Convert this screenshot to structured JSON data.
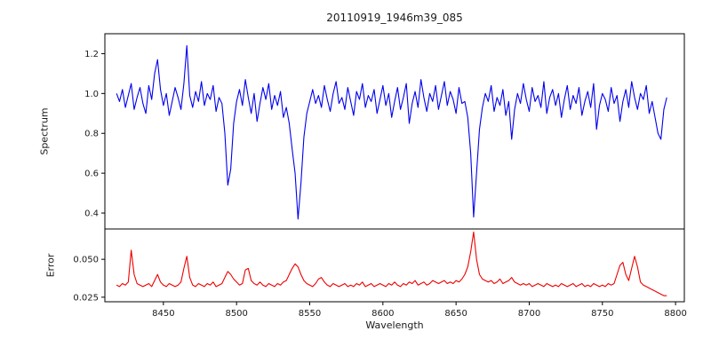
{
  "chart_data": {
    "type": "line",
    "title": "20110919_1946m39_085",
    "xlabel": "Wavelength",
    "x_start": 8418,
    "x_step": 2,
    "xlim": [
      8410,
      8806
    ],
    "x_ticks": [
      8450,
      8500,
      8550,
      8600,
      8650,
      8700,
      8750,
      8800
    ],
    "x_tick_labels": [
      "8450",
      "8500",
      "8550",
      "8600",
      "8650",
      "8700",
      "8750",
      "8800"
    ],
    "frame_color": "#000000",
    "panels": [
      {
        "name": "spectrum",
        "ylabel": "Spectrum",
        "color": "#0000ee",
        "ylim": [
          0.32,
          1.3
        ],
        "y_ticks": [
          0.4,
          0.6,
          0.8,
          1.0,
          1.2
        ],
        "y_tick_labels": [
          "0.4",
          "0.6",
          "0.8",
          "1.0",
          "1.2"
        ],
        "values": [
          1.0,
          0.96,
          1.02,
          0.93,
          0.99,
          1.05,
          0.92,
          0.98,
          1.03,
          0.95,
          0.9,
          1.04,
          0.97,
          1.1,
          1.17,
          1.02,
          0.94,
          1.0,
          0.89,
          0.96,
          1.03,
          0.98,
          0.92,
          1.05,
          1.24,
          0.99,
          0.93,
          1.01,
          0.96,
          1.06,
          0.94,
          1.0,
          0.97,
          1.04,
          0.91,
          0.98,
          0.95,
          0.8,
          0.54,
          0.62,
          0.85,
          0.96,
          1.02,
          0.94,
          1.07,
          0.98,
          0.9,
          1.0,
          0.86,
          0.95,
          1.03,
          0.97,
          1.05,
          0.92,
          0.99,
          0.94,
          1.01,
          0.88,
          0.93,
          0.85,
          0.72,
          0.6,
          0.37,
          0.55,
          0.78,
          0.9,
          0.96,
          1.02,
          0.95,
          0.99,
          0.93,
          1.04,
          0.97,
          0.91,
          1.0,
          1.06,
          0.95,
          0.98,
          0.92,
          1.03,
          0.96,
          0.89,
          1.01,
          0.97,
          1.05,
          0.93,
          0.99,
          0.96,
          1.02,
          0.9,
          0.97,
          1.04,
          0.94,
          1.0,
          0.88,
          0.96,
          1.03,
          0.92,
          0.98,
          1.05,
          0.85,
          0.95,
          1.01,
          0.93,
          1.07,
          0.98,
          0.91,
          1.0,
          0.96,
          1.04,
          0.92,
          0.99,
          1.06,
          0.94,
          1.01,
          0.97,
          0.9,
          1.03,
          0.95,
          0.96,
          0.88,
          0.7,
          0.38,
          0.6,
          0.82,
          0.93,
          1.0,
          0.96,
          1.04,
          0.91,
          0.98,
          0.94,
          1.02,
          0.89,
          0.96,
          0.77,
          0.92,
          1.0,
          0.95,
          1.05,
          0.97,
          0.91,
          1.03,
          0.96,
          0.99,
          0.93,
          1.06,
          0.9,
          0.98,
          1.02,
          0.94,
          1.0,
          0.88,
          0.97,
          1.04,
          0.92,
          0.99,
          0.95,
          1.03,
          0.89,
          0.96,
          1.01,
          0.93,
          1.05,
          0.82,
          0.94,
          1.0,
          0.97,
          0.91,
          1.03,
          0.95,
          0.99,
          0.86,
          0.96,
          1.02,
          0.93,
          1.06,
          0.98,
          0.92,
          1.0,
          0.97,
          1.04,
          0.9,
          0.96,
          0.88,
          0.8,
          0.77,
          0.92,
          0.98
        ]
      },
      {
        "name": "error",
        "ylabel": "Error",
        "color": "#ee0000",
        "ylim": [
          0.022,
          0.07
        ],
        "y_ticks": [
          0.025,
          0.05
        ],
        "y_tick_labels": [
          "0.025",
          "0.050"
        ],
        "values": [
          0.033,
          0.032,
          0.034,
          0.033,
          0.035,
          0.056,
          0.04,
          0.034,
          0.033,
          0.032,
          0.033,
          0.034,
          0.032,
          0.036,
          0.04,
          0.035,
          0.033,
          0.032,
          0.034,
          0.033,
          0.032,
          0.033,
          0.035,
          0.044,
          0.052,
          0.038,
          0.033,
          0.032,
          0.034,
          0.033,
          0.032,
          0.034,
          0.033,
          0.035,
          0.032,
          0.033,
          0.034,
          0.038,
          0.042,
          0.04,
          0.037,
          0.035,
          0.033,
          0.034,
          0.043,
          0.044,
          0.036,
          0.034,
          0.033,
          0.035,
          0.033,
          0.032,
          0.034,
          0.033,
          0.032,
          0.034,
          0.033,
          0.035,
          0.036,
          0.04,
          0.044,
          0.047,
          0.045,
          0.04,
          0.036,
          0.034,
          0.033,
          0.032,
          0.034,
          0.037,
          0.038,
          0.035,
          0.033,
          0.032,
          0.034,
          0.033,
          0.032,
          0.033,
          0.034,
          0.032,
          0.033,
          0.032,
          0.034,
          0.033,
          0.035,
          0.032,
          0.033,
          0.034,
          0.032,
          0.033,
          0.034,
          0.033,
          0.032,
          0.034,
          0.033,
          0.035,
          0.033,
          0.032,
          0.034,
          0.033,
          0.035,
          0.034,
          0.036,
          0.033,
          0.034,
          0.035,
          0.033,
          0.034,
          0.036,
          0.035,
          0.034,
          0.035,
          0.036,
          0.034,
          0.035,
          0.034,
          0.036,
          0.035,
          0.037,
          0.04,
          0.045,
          0.055,
          0.068,
          0.05,
          0.04,
          0.037,
          0.036,
          0.035,
          0.036,
          0.034,
          0.035,
          0.037,
          0.034,
          0.035,
          0.036,
          0.038,
          0.035,
          0.034,
          0.033,
          0.034,
          0.033,
          0.034,
          0.032,
          0.033,
          0.034,
          0.033,
          0.032,
          0.034,
          0.033,
          0.032,
          0.033,
          0.032,
          0.034,
          0.033,
          0.032,
          0.033,
          0.034,
          0.032,
          0.033,
          0.034,
          0.032,
          0.033,
          0.032,
          0.034,
          0.033,
          0.032,
          0.033,
          0.032,
          0.034,
          0.033,
          0.034,
          0.04,
          0.046,
          0.048,
          0.04,
          0.036,
          0.044,
          0.052,
          0.045,
          0.035,
          0.033,
          0.032,
          0.031,
          0.03,
          0.029,
          0.028,
          0.027,
          0.026,
          0.026
        ]
      }
    ]
  }
}
